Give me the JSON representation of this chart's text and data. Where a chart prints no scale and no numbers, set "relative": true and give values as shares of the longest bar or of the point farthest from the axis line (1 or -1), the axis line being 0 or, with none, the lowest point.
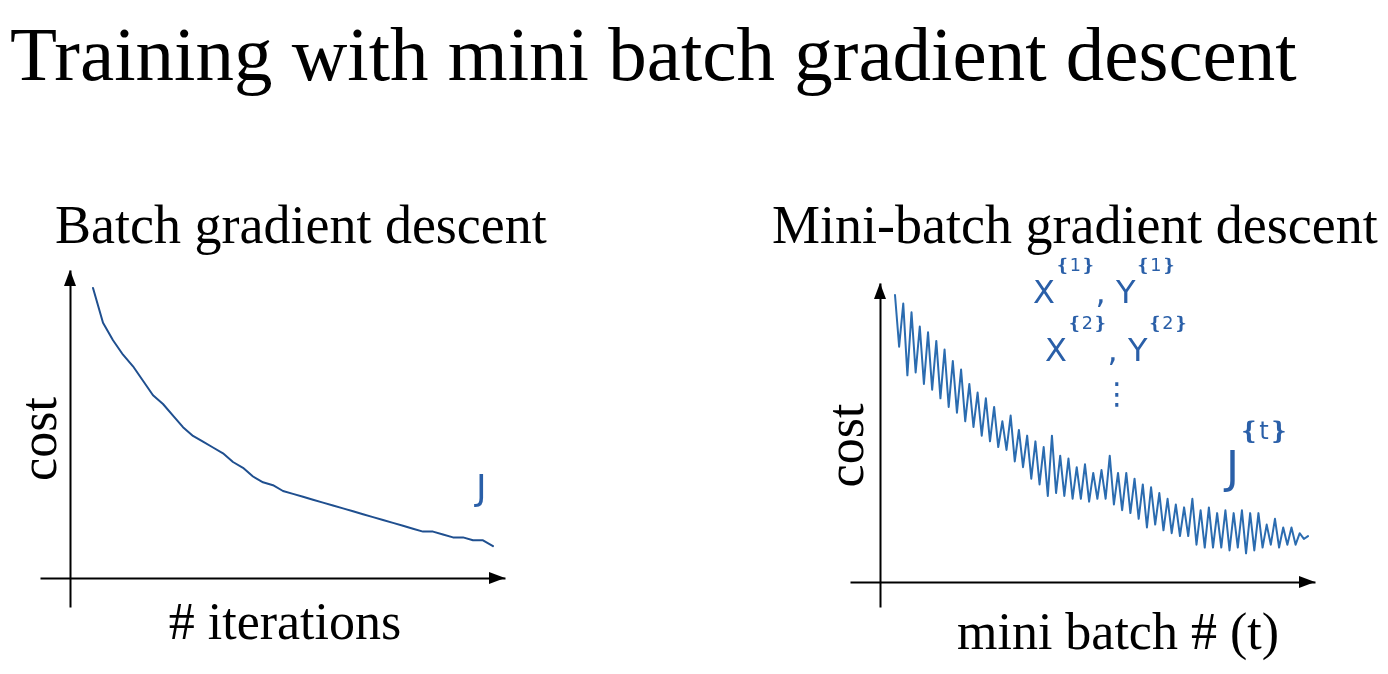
{
  "chart_data": [
    {
      "type": "line",
      "title": "Training with mini batch gradient descent",
      "subtitle": "Batch gradient descent",
      "xlabel": "# iterations",
      "ylabel": "cost",
      "relative": true,
      "categories": [
        null,
        null,
        null,
        null,
        null,
        null,
        null,
        null,
        null,
        null,
        null,
        null,
        null,
        null,
        null,
        null,
        null,
        null,
        null,
        null,
        null,
        null,
        null,
        null,
        null,
        null,
        null,
        null,
        null,
        null,
        null,
        null,
        null,
        null,
        null,
        null,
        null,
        null,
        null,
        null,
        null
      ],
      "series": [
        {
          "color": "#1f4f8f",
          "values": [
            1,
            0.88,
            0.82,
            0.77,
            0.73,
            0.68,
            0.63,
            0.6,
            0.56,
            0.52,
            0.49,
            0.47,
            0.45,
            0.43,
            0.4,
            0.38,
            0.35,
            0.33,
            0.32,
            0.3,
            0.29,
            0.28,
            0.27,
            0.26,
            0.25,
            0.24,
            0.23,
            0.22,
            0.21,
            0.2,
            0.19,
            0.18,
            0.17,
            0.16,
            0.16,
            0.15,
            0.14,
            0.14,
            0.13,
            0.13,
            0.11
          ]
        }
      ],
      "annotations": [
        "J"
      ]
    },
    {
      "type": "line",
      "title": "Mini-batch gradient descent",
      "xlabel": "mini batch # (t)",
      "ylabel": "cost",
      "relative": true,
      "categories": [
        null,
        null,
        null,
        null,
        null,
        null,
        null,
        null,
        null,
        null,
        null,
        null,
        null,
        null,
        null,
        null,
        null,
        null,
        null,
        null,
        null,
        null,
        null,
        null,
        null,
        null,
        null,
        null,
        null,
        null,
        null,
        null,
        null,
        null,
        null,
        null,
        null,
        null,
        null,
        null,
        null,
        null,
        null,
        null,
        null,
        null,
        null,
        null,
        null,
        null,
        null,
        null,
        null,
        null,
        null,
        null,
        null,
        null,
        null,
        null,
        null,
        null,
        null,
        null,
        null,
        null,
        null,
        null,
        null,
        null,
        null,
        null,
        null,
        null,
        null,
        null,
        null,
        null,
        null,
        null,
        null,
        null,
        null,
        null,
        null,
        null,
        null,
        null,
        null,
        null,
        null,
        null,
        null,
        null,
        null,
        null,
        null,
        null,
        null,
        null,
        null
      ],
      "series": [
        {
          "color": "#2b6cb0",
          "values": [
            1,
            0.82,
            0.97,
            0.72,
            0.94,
            0.73,
            0.89,
            0.69,
            0.87,
            0.67,
            0.84,
            0.64,
            0.81,
            0.61,
            0.77,
            0.59,
            0.74,
            0.56,
            0.69,
            0.54,
            0.66,
            0.51,
            0.64,
            0.49,
            0.61,
            0.47,
            0.56,
            0.46,
            0.58,
            0.42,
            0.53,
            0.4,
            0.51,
            0.36,
            0.49,
            0.34,
            0.47,
            0.3,
            0.51,
            0.31,
            0.44,
            0.3,
            0.43,
            0.29,
            0.4,
            0.29,
            0.41,
            0.28,
            0.38,
            0.29,
            0.39,
            0.29,
            0.44,
            0.27,
            0.38,
            0.25,
            0.38,
            0.24,
            0.36,
            0.22,
            0.34,
            0.19,
            0.33,
            0.2,
            0.31,
            0.18,
            0.29,
            0.17,
            0.27,
            0.16,
            0.26,
            0.16,
            0.29,
            0.13,
            0.25,
            0.12,
            0.26,
            0.12,
            0.24,
            0.12,
            0.25,
            0.11,
            0.24,
            0.12,
            0.25,
            0.1,
            0.24,
            0.11,
            0.24,
            0.12,
            0.2,
            0.13,
            0.22,
            0.12,
            0.19,
            0.13,
            0.19,
            0.13,
            0.17,
            0.15,
            0.16
          ]
        }
      ],
      "annotations": [
        "X$^{❴1❵}$, Y$^{❴1❵}$",
        "X$^{❴2❵}$, Y$^{❴2❵}$",
        "⋮",
        "J$^{❴t❵}$"
      ]
    }
  ]
}
